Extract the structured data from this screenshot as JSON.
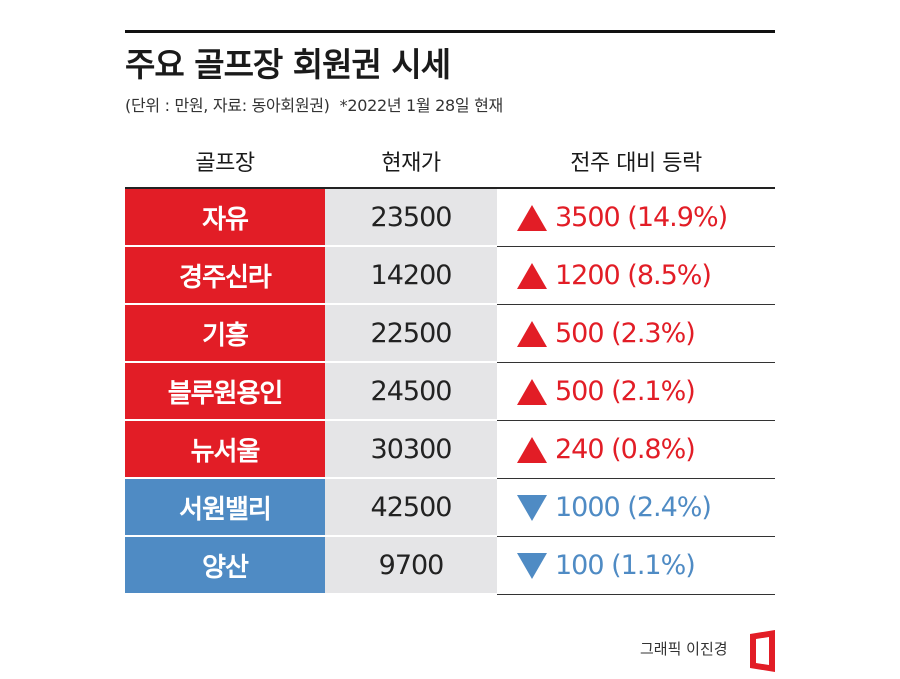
{
  "title": "주요 골프장 회원권 시세",
  "subtitle": "(단위 : 만원, 자료: 동아회원권)",
  "date_note": "*2022년 1월 28일 현재",
  "credit": "그래픽 이진경",
  "colors": {
    "up": "#e21d26",
    "down": "#4f8bc4",
    "price_bg": "#e5e5e7"
  },
  "headers": [
    "골프장",
    "현재가",
    "전주 대비 등락"
  ],
  "rows": [
    {
      "name": "자유",
      "price": "23500",
      "change": "3500 (14.9%)",
      "dir": "up"
    },
    {
      "name": "경주신라",
      "price": "14200",
      "change": "1200 (8.5%)",
      "dir": "up"
    },
    {
      "name": "기흥",
      "price": "22500",
      "change": "500 (2.3%)",
      "dir": "up"
    },
    {
      "name": "블루원용인",
      "price": "24500",
      "change": "500 (2.1%)",
      "dir": "up"
    },
    {
      "name": "뉴서울",
      "price": "30300",
      "change": "240 (0.8%)",
      "dir": "up"
    },
    {
      "name": "서원밸리",
      "price": "42500",
      "change": "1000 (2.4%)",
      "dir": "down"
    },
    {
      "name": "양산",
      "price": "9700",
      "change": "100 (1.1%)",
      "dir": "down"
    }
  ],
  "chart_data": {
    "type": "table",
    "title": "주요 골프장 회원권 시세",
    "columns": [
      "골프장",
      "현재가",
      "전주 대비 등락"
    ],
    "rows": [
      [
        "자유",
        23500,
        "▲3500 (14.9%)"
      ],
      [
        "경주신라",
        14200,
        "▲1200 (8.5%)"
      ],
      [
        "기흥",
        22500,
        "▲500 (2.3%)"
      ],
      [
        "블루원용인",
        24500,
        "▲500 (2.1%)"
      ],
      [
        "뉴서울",
        30300,
        "▲240 (0.8%)"
      ],
      [
        "서원밸리",
        42500,
        "▼1000 (2.4%)"
      ],
      [
        "양산",
        9700,
        "▼100 (1.1%)"
      ]
    ]
  }
}
